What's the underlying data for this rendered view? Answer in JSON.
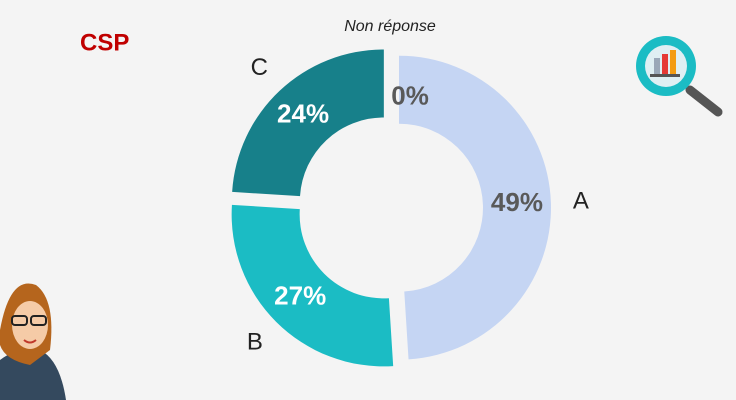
{
  "chart_data": {
    "type": "donut",
    "title": "CSP",
    "categories": [
      "A",
      "B",
      "C",
      "Non réponse"
    ],
    "values": [
      49,
      27,
      24,
      0
    ],
    "value_labels": [
      "49%",
      "27%",
      "24%",
      "0%"
    ],
    "colors": [
      "#c5d5f3",
      "#1bbcc4",
      "#17808a",
      "#9e9e9e"
    ]
  }
}
